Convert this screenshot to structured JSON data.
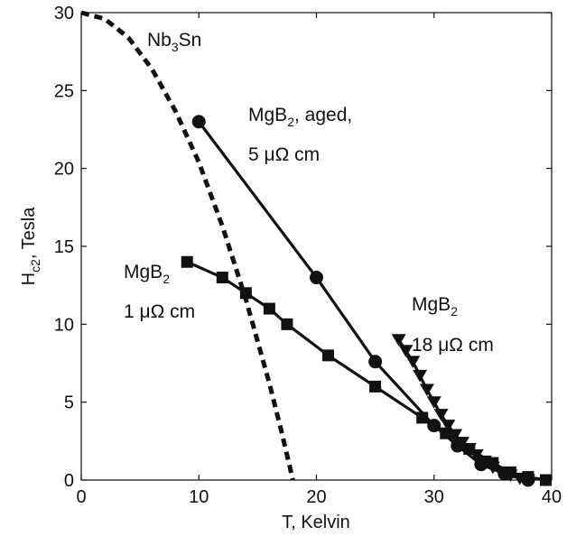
{
  "chart_data": {
    "type": "line",
    "xlabel": {
      "main": "T, Kelvin"
    },
    "ylabel": {
      "main": "H",
      "sub": "c2",
      "rest": ", Tesla"
    },
    "xlim": [
      0,
      40
    ],
    "ylim": [
      0,
      30
    ],
    "xticks": [
      0,
      10,
      20,
      30,
      40
    ],
    "yticks": [
      0,
      5,
      10,
      15,
      20,
      25,
      30
    ],
    "grid": false,
    "legend": "none",
    "series": [
      {
        "marker": "none",
        "style": "dotted",
        "color": "#111111",
        "x": [
          0,
          2,
          4,
          6,
          8,
          10,
          12,
          14,
          16,
          17,
          18
        ],
        "y": [
          30,
          29.6,
          28.4,
          26.4,
          23.7,
          20.4,
          16.3,
          11.6,
          6.2,
          3.2,
          0
        ]
      },
      {
        "marker": "circle",
        "style": "solid",
        "color": "#111111",
        "x": [
          10,
          20,
          25,
          30,
          32,
          34,
          36,
          38
        ],
        "y": [
          23,
          13,
          7.6,
          3.5,
          2.2,
          1.0,
          0.4,
          0
        ]
      },
      {
        "marker": "square",
        "style": "solid",
        "color": "#111111",
        "x": [
          9,
          12,
          14,
          16,
          17.5,
          21,
          25,
          29,
          31,
          33,
          35,
          36.5,
          38,
          39.5
        ],
        "y": [
          14,
          13,
          12,
          11,
          10,
          8,
          6,
          4,
          3,
          2,
          1.1,
          0.5,
          0.2,
          0
        ]
      },
      {
        "marker": "triangle-down",
        "style": "solid",
        "color": "#111111",
        "x": [
          27,
          27.6,
          28.2,
          28.8,
          29.4,
          30,
          30.6,
          31.2,
          31.8,
          32.4,
          33,
          33.6,
          34.3,
          35,
          35.7,
          36.5,
          37.3,
          38
        ],
        "y": [
          9,
          8.3,
          7.6,
          6.7,
          5.8,
          5.0,
          4.2,
          3.5,
          2.9,
          2.4,
          2.0,
          1.6,
          1.2,
          0.8,
          0.5,
          0.3,
          0.1,
          0
        ]
      }
    ],
    "annotations": {
      "nb3sn": {
        "a": "Nb",
        "b": "3",
        "c": "Sn"
      },
      "aged": {
        "a": "MgB",
        "b": "2",
        "c": ", aged,",
        "line2": "5 μΩ cm"
      },
      "one": {
        "a": "MgB",
        "b": "2",
        "line2": "1 μΩ cm"
      },
      "eighteen": {
        "a": "MgB",
        "b": "2",
        "line2": "18 μΩ cm"
      }
    }
  }
}
